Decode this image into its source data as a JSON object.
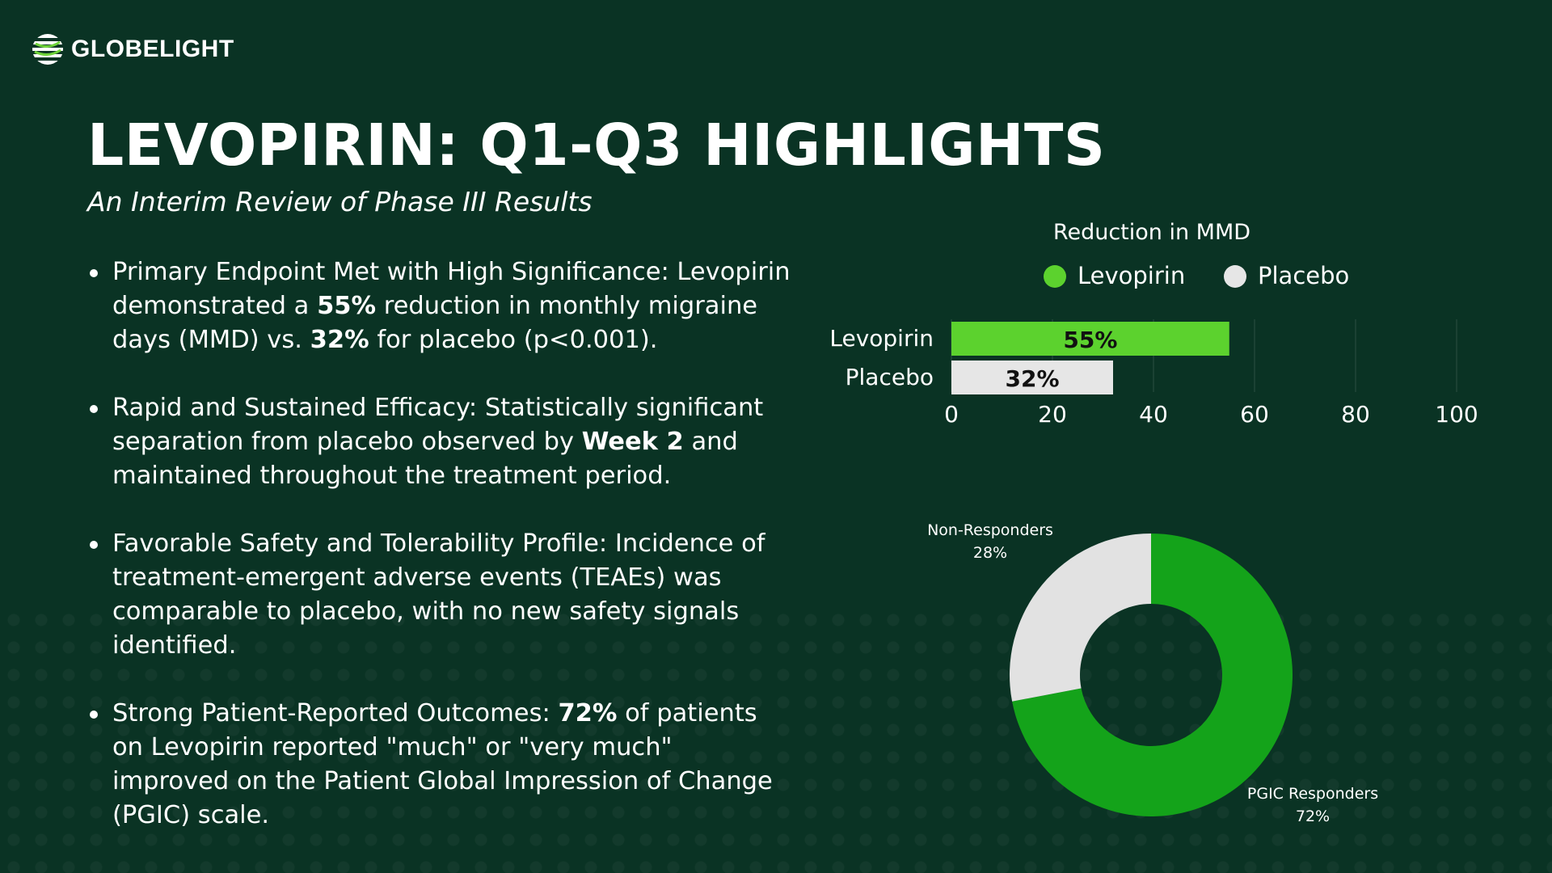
{
  "brand": {
    "name": "GLOBELIGHT"
  },
  "title": "LEVOPIRIN: Q1-Q3 HIGHLIGHTS",
  "subtitle": "An Interim Review of Phase III Results",
  "bullets": [
    {
      "parts": [
        "Primary Endpoint Met with High Significance: Levopirin demonstrated a ",
        "55%",
        " reduction in monthly migraine days (MMD) vs. ",
        "32%",
        " for placebo (p<0.001)."
      ]
    },
    {
      "parts": [
        "Rapid and Sustained Efficacy: Statistically significant separation from placebo observed by ",
        "Week 2",
        " and maintained throughout the treatment period."
      ]
    },
    {
      "parts": [
        "Favorable Safety and Tolerability Profile: Incidence of treatment-emergent adverse events (TEAEs) was comparable to placebo, with no new safety signals identified."
      ]
    },
    {
      "parts": [
        "Strong Patient-Reported Outcomes: ",
        "72%",
        " of patients on Levopirin reported \"much\" or \"very much\" improved on the Patient Global Impression of Change (PGIC) scale."
      ]
    }
  ],
  "colors": {
    "background": "#0a3324",
    "levopirin_bar": "#5cd22e",
    "placebo_bar": "#e6e6e6",
    "donut_green": "#14a31a",
    "donut_grey": "#e2e2e2"
  },
  "chart_data": [
    {
      "type": "bar",
      "orientation": "horizontal",
      "title": "Reduction in MMD",
      "categories": [
        "Levopirin",
        "Placebo"
      ],
      "values": [
        55,
        32
      ],
      "value_labels": [
        "55%",
        "32%"
      ],
      "series": [
        {
          "name": "Levopirin",
          "color": "#5cd22e"
        },
        {
          "name": "Placebo",
          "color": "#e6e6e6"
        }
      ],
      "xlim": [
        0,
        100
      ],
      "xticks": [
        0,
        20,
        40,
        60,
        80,
        100
      ],
      "grid": true,
      "legend": "top"
    },
    {
      "type": "pie",
      "style": "donut",
      "slices": [
        {
          "label": "PGIC Responders",
          "value": 72,
          "value_label": "72%",
          "color": "#14a31a"
        },
        {
          "label": "Non-Responders",
          "value": 28,
          "value_label": "28%",
          "color": "#e2e2e2"
        }
      ]
    }
  ]
}
